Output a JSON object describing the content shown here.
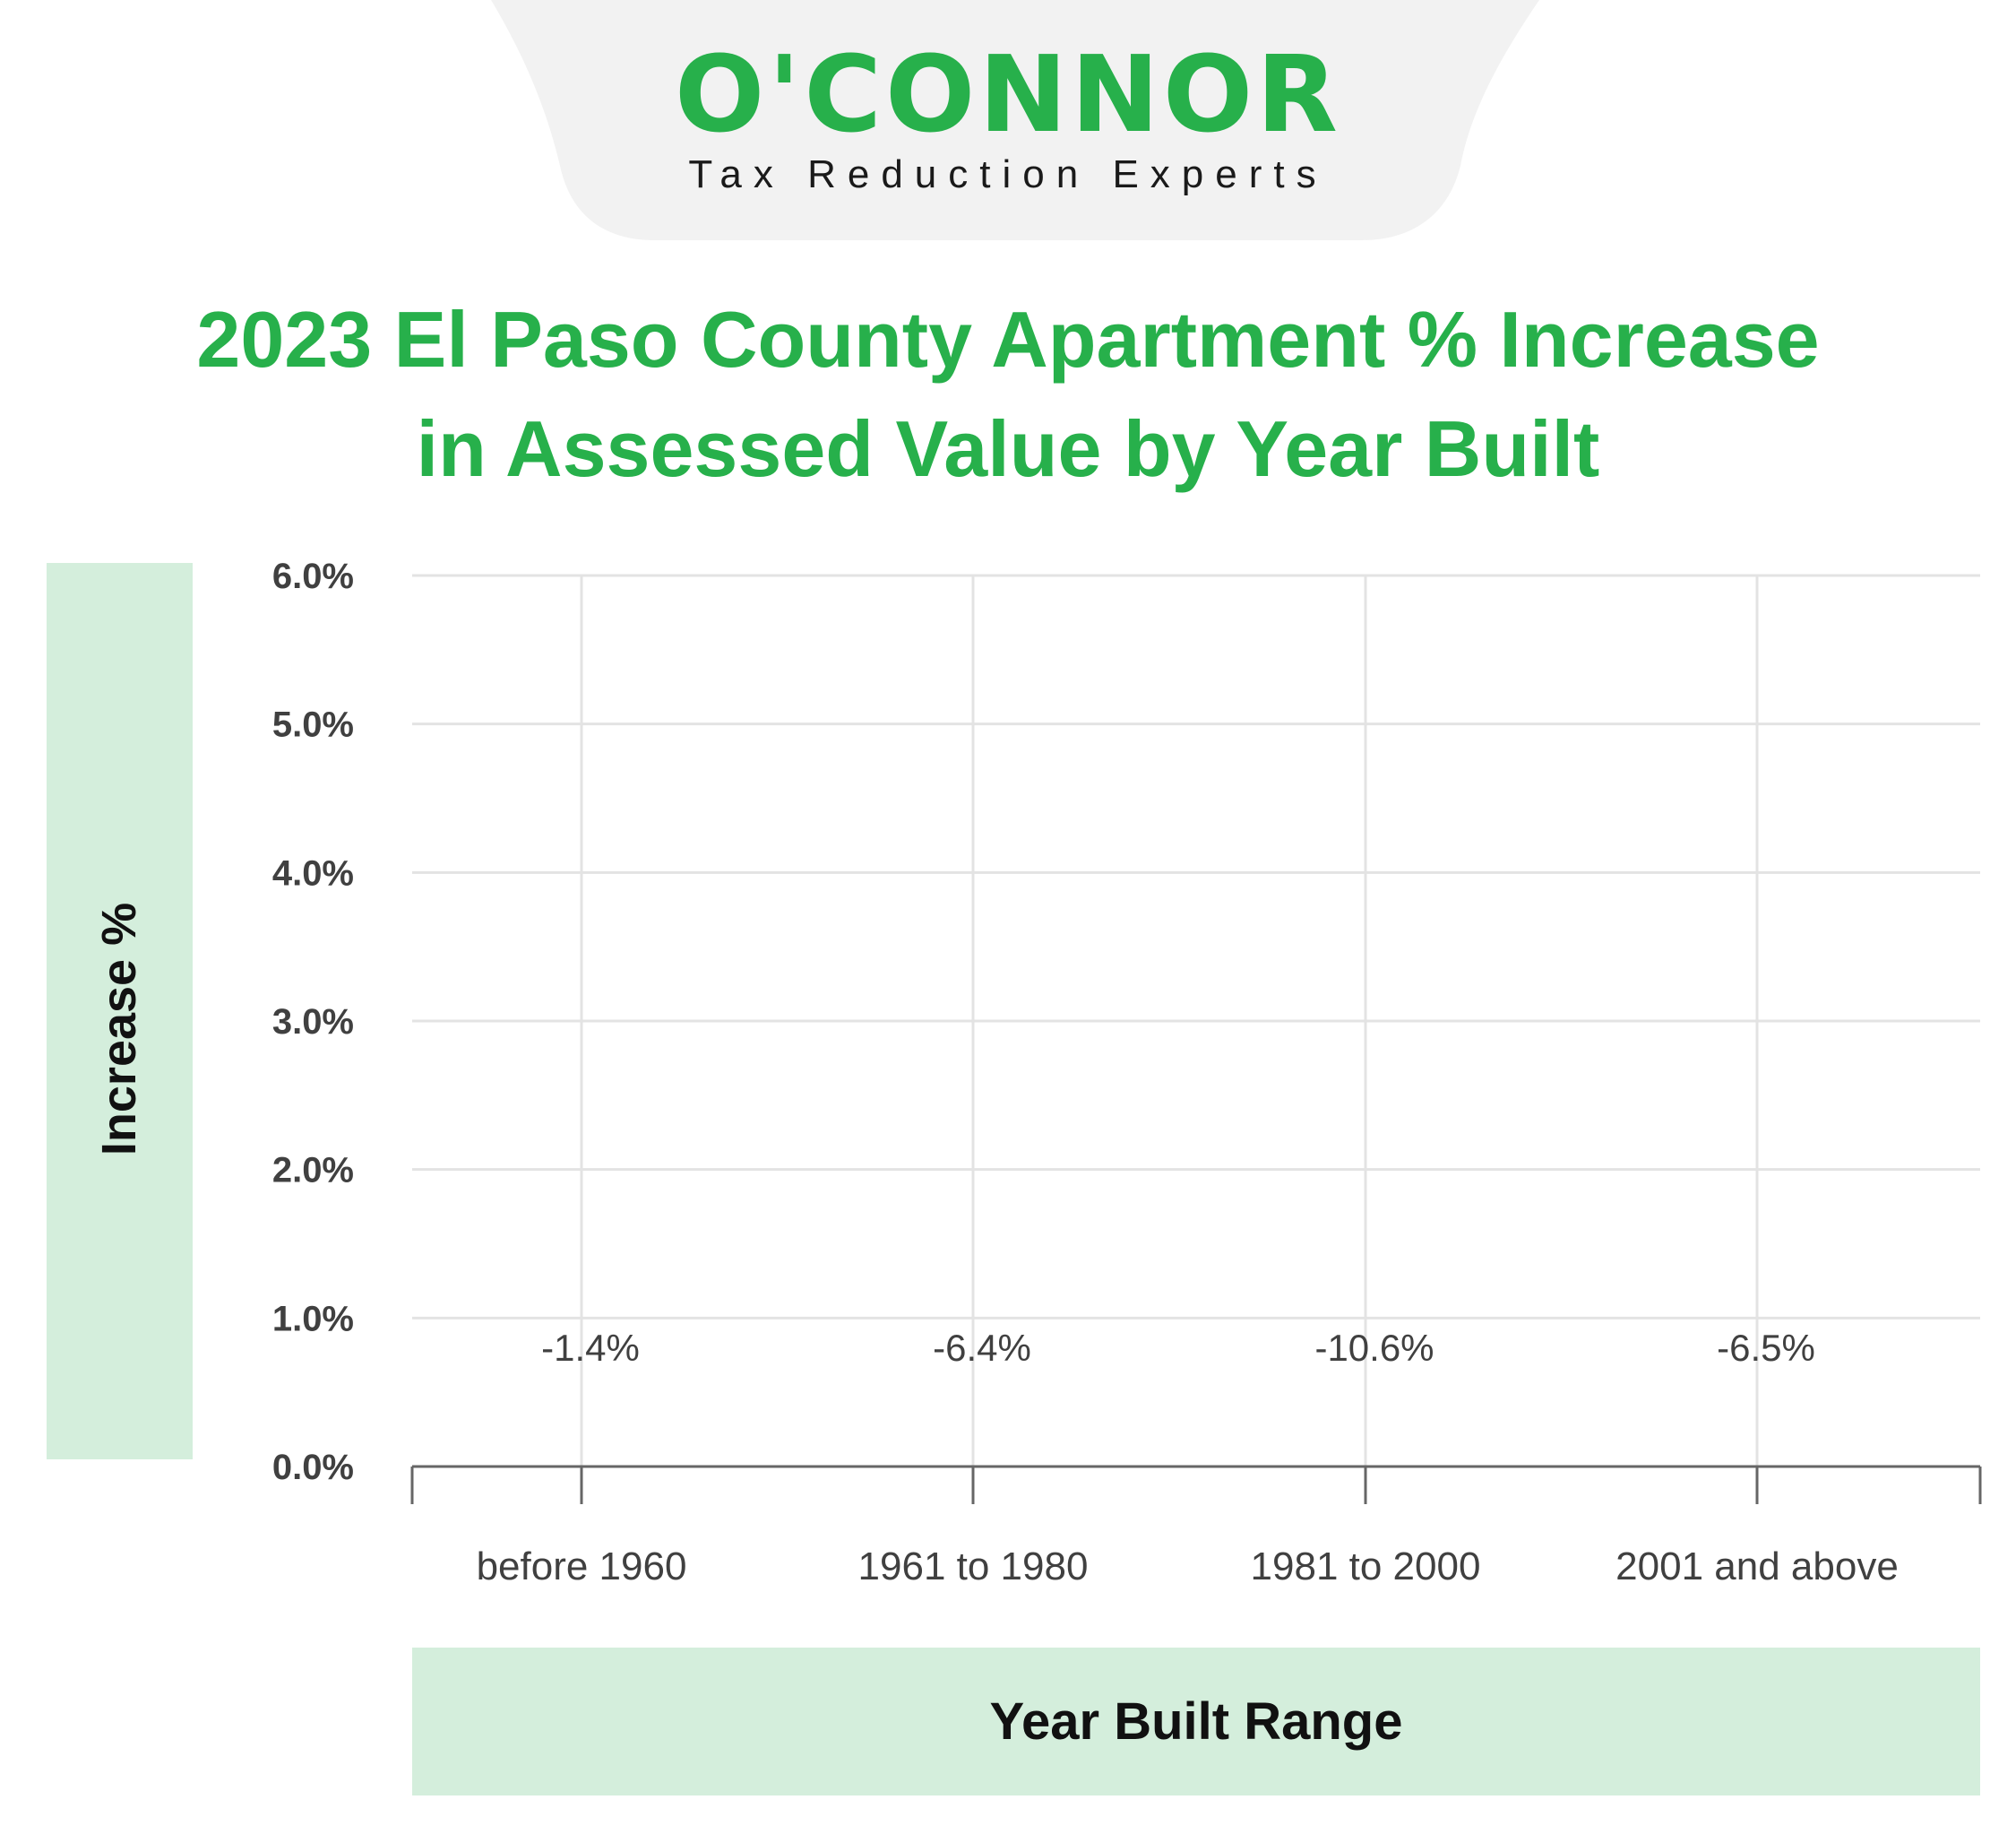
{
  "brand": {
    "logo": "O'CONNOR",
    "tagline": "Tax Reduction Experts",
    "tab_color": "#f2f2f2",
    "brand_color": "#27b04b"
  },
  "chart_data": {
    "type": "bar",
    "title_lines": [
      "2023 El Paso County Apartment % Increase",
      "in Assessed Value by Year Built"
    ],
    "categories": [
      "before 1960",
      "1961 to 1980",
      "1981 to 2000",
      "2001 and above"
    ],
    "values": [
      -1.4,
      -6.4,
      -10.6,
      -6.5
    ],
    "data_labels": [
      "-1.4%",
      "-6.4%",
      "-10.6%",
      "-6.5%"
    ],
    "xlabel": "Year Built Range",
    "ylabel": "Increase %",
    "ylim": [
      0,
      6
    ],
    "y_ticks": [
      0,
      1,
      2,
      3,
      4,
      5,
      6
    ],
    "y_tick_labels": [
      "0.0%",
      "1.0%",
      "2.0%",
      "3.0%",
      "4.0%",
      "5.0%",
      "6.0%"
    ],
    "grid": true,
    "label_box_color": "#d4eedc"
  }
}
